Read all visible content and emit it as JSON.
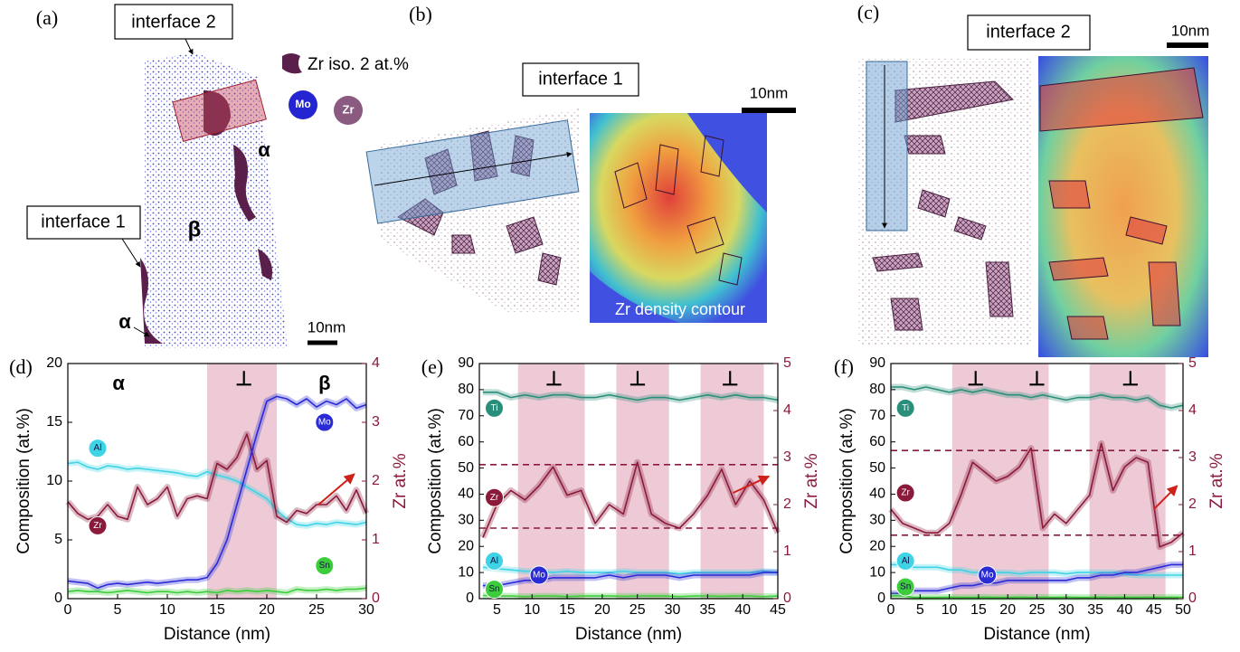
{
  "panels": {
    "a": {
      "label": "(a)",
      "callout_top": "interface 2",
      "legend_iso": "Zr iso. 2 at.%",
      "atom_mo": "Mo",
      "atom_zr": "Zr",
      "phase_alpha_upper": "α",
      "phase_beta": "β",
      "callout_left": "interface 1",
      "phase_alpha_lower": "α",
      "scale": "10nm"
    },
    "b": {
      "label": "(b)",
      "title": "interface 1",
      "scale": "10nm",
      "caption": "Zr density contour"
    },
    "c": {
      "label": "(c)",
      "title": "interface 2",
      "scale": "10nm"
    }
  },
  "chart_data": [
    {
      "type": "line",
      "panel_label": "(d)",
      "xlabel": "Distance (nm)",
      "ylabel": "Composition (at.%)",
      "y2label": "Zr at.%",
      "xlim": [
        0,
        30
      ],
      "xticks": [
        0,
        5,
        10,
        15,
        20,
        25,
        30
      ],
      "ylim": [
        0,
        20
      ],
      "yticks": [
        0,
        5,
        10,
        15,
        20
      ],
      "y2lim": [
        0,
        4
      ],
      "y2ticks": [
        0,
        1,
        2,
        3,
        4
      ],
      "bands": [
        [
          14,
          21
        ]
      ],
      "y2_reference_lines": [],
      "annotations": [
        "α",
        "⊥",
        "β"
      ],
      "x": [
        0,
        1,
        2,
        3,
        4,
        5,
        6,
        7,
        8,
        9,
        10,
        11,
        12,
        13,
        14,
        15,
        16,
        17,
        18,
        19,
        20,
        21,
        22,
        23,
        24,
        25,
        26,
        27,
        28,
        29,
        30
      ],
      "series": [
        {
          "name": "Al",
          "color": "#3fd3e6",
          "values": [
            11.5,
            11.6,
            11.2,
            11.0,
            11.3,
            11.2,
            11.0,
            11.1,
            11.0,
            10.9,
            10.8,
            10.7,
            10.5,
            10.4,
            10.8,
            10.5,
            10.3,
            10.0,
            9.5,
            9.0,
            8.5,
            7.5,
            6.8,
            6.3,
            6.2,
            6.4,
            6.3,
            6.5,
            6.4,
            6.3,
            6.5
          ]
        },
        {
          "name": "Zr",
          "color": "#8b1a3a",
          "axis": "y2",
          "values": [
            1.65,
            1.45,
            1.35,
            1.4,
            1.6,
            1.4,
            1.35,
            1.9,
            1.6,
            1.7,
            1.9,
            1.4,
            1.7,
            1.75,
            1.7,
            2.3,
            2.2,
            2.4,
            2.8,
            2.2,
            2.35,
            1.4,
            1.3,
            1.5,
            1.45,
            1.6,
            1.6,
            1.75,
            1.5,
            1.85,
            1.45
          ]
        },
        {
          "name": "Mo",
          "color": "#2b2bd6",
          "values": [
            1.5,
            1.4,
            1.3,
            0.9,
            1.2,
            1.3,
            1.2,
            1.3,
            1.4,
            1.3,
            1.4,
            1.5,
            1.6,
            1.6,
            1.8,
            3.0,
            5,
            8,
            11,
            14,
            16.8,
            17.2,
            17.0,
            16.5,
            17.0,
            16.3,
            16.8,
            16.5,
            17.0,
            16.2,
            16.5
          ]
        },
        {
          "name": "Sn",
          "color": "#3ccc3c",
          "values": [
            0.6,
            0.7,
            0.6,
            0.6,
            0.5,
            0.6,
            0.7,
            0.6,
            0.5,
            0.6,
            0.6,
            0.5,
            0.6,
            0.5,
            0.6,
            0.5,
            0.7,
            0.6,
            0.7,
            0.6,
            0.7,
            0.6,
            0.5,
            0.8,
            0.7,
            0.7,
            0.8,
            0.7,
            0.8,
            0.8,
            0.9
          ]
        }
      ]
    },
    {
      "type": "line",
      "panel_label": "(e)",
      "xlabel": "Distance (nm)",
      "ylabel": "Composition (at.%)",
      "y2label": "Zr at.%",
      "xlim": [
        2.5,
        45
      ],
      "xticks": [
        5,
        10,
        15,
        20,
        25,
        30,
        35,
        40,
        45
      ],
      "ylim": [
        0,
        90
      ],
      "yticks": [
        0,
        10,
        20,
        30,
        40,
        50,
        60,
        70,
        80,
        90
      ],
      "y2lim": [
        0,
        5
      ],
      "y2ticks": [
        0,
        1,
        2,
        3,
        4,
        5
      ],
      "bands": [
        [
          8,
          17.5
        ],
        [
          22,
          29.5
        ],
        [
          34,
          43
        ]
      ],
      "y2_reference_lines": [
        2.85,
        1.5
      ],
      "annotations": [
        "⊥",
        "⊥",
        "⊥"
      ],
      "x": [
        3,
        5,
        7,
        9,
        11,
        13,
        15,
        17,
        19,
        21,
        23,
        25,
        27,
        29,
        31,
        33,
        35,
        37,
        39,
        41,
        43,
        45
      ],
      "series": [
        {
          "name": "Ti",
          "color": "#2a8f7a",
          "values": [
            79,
            79,
            77,
            78,
            77,
            78,
            78,
            77,
            77,
            78,
            77,
            76,
            77,
            77,
            76,
            77,
            78,
            77,
            78,
            77,
            77,
            76
          ]
        },
        {
          "name": "Zr",
          "color": "#8b1a3a",
          "axis": "y2",
          "values": [
            1.3,
            2.0,
            2.3,
            2.1,
            2.4,
            2.8,
            2.2,
            2.3,
            1.6,
            2.0,
            1.8,
            2.9,
            1.8,
            1.6,
            1.5,
            1.8,
            2.2,
            2.75,
            2.0,
            2.5,
            2.1,
            1.4
          ]
        },
        {
          "name": "Al",
          "color": "#3fd3e6",
          "values": [
            12,
            11.5,
            11,
            10.5,
            10.5,
            10,
            10.5,
            10,
            10,
            10,
            10.5,
            10,
            10,
            10,
            9.5,
            10,
            10,
            10,
            10,
            10,
            10.5,
            10
          ]
        },
        {
          "name": "Mo",
          "color": "#2b2bd6",
          "values": [
            5,
            5,
            6,
            7,
            7,
            8,
            8,
            8,
            8,
            9,
            8,
            9,
            9,
            9,
            8,
            9,
            9,
            9,
            9,
            9,
            10,
            10
          ]
        },
        {
          "name": "Sn",
          "color": "#3ccc3c",
          "values": [
            1.2,
            1,
            1,
            0.8,
            1,
            1,
            0.8,
            1,
            1,
            1,
            0.9,
            1,
            1,
            1,
            0.8,
            1,
            1,
            0.9,
            1,
            1,
            0.8,
            1
          ]
        }
      ]
    },
    {
      "type": "line",
      "panel_label": "(f)",
      "xlabel": "Distance (nm)",
      "ylabel": "Composition (at.%)",
      "y2label": "Zr at.%",
      "xlim": [
        0,
        50
      ],
      "xticks": [
        0,
        5,
        10,
        15,
        20,
        25,
        30,
        35,
        40,
        45,
        50
      ],
      "ylim": [
        0,
        90
      ],
      "yticks": [
        0,
        10,
        20,
        30,
        40,
        50,
        60,
        70,
        80,
        90
      ],
      "y2lim": [
        0,
        5
      ],
      "y2ticks": [
        0,
        1,
        2,
        3,
        4,
        5
      ],
      "bands": [
        [
          10.5,
          27
        ],
        [
          34,
          47
        ]
      ],
      "y2_reference_lines": [
        3.15,
        1.35
      ],
      "annotations": [
        "⊥",
        "⊥",
        "⊥"
      ],
      "x": [
        0,
        2,
        4,
        6,
        8,
        10,
        12,
        14,
        16,
        18,
        20,
        22,
        24,
        26,
        28,
        30,
        32,
        34,
        36,
        38,
        40,
        42,
        44,
        46,
        48,
        50
      ],
      "series": [
        {
          "name": "Ti",
          "color": "#2a8f7a",
          "values": [
            81,
            81,
            80,
            81,
            80,
            79,
            80,
            79,
            80,
            79,
            78,
            78,
            77,
            78,
            77,
            76,
            77,
            77,
            78,
            77,
            77,
            76,
            77,
            74,
            73,
            74
          ]
        },
        {
          "name": "Zr",
          "color": "#8b1a3a",
          "axis": "y2",
          "values": [
            1.9,
            1.6,
            1.5,
            1.4,
            1.4,
            1.6,
            2.2,
            2.9,
            2.7,
            2.5,
            2.6,
            2.8,
            3.2,
            1.5,
            1.8,
            1.6,
            1.9,
            2.2,
            3.3,
            2.3,
            2.8,
            3.0,
            2.9,
            1.1,
            1.2,
            1.4
          ]
        },
        {
          "name": "Al",
          "color": "#3fd3e6",
          "values": [
            13,
            13,
            12,
            12,
            12,
            11,
            11,
            10,
            10,
            10,
            10,
            9.5,
            10,
            10,
            10,
            9.5,
            10,
            10,
            10,
            10,
            9.5,
            9,
            9,
            9,
            9,
            9
          ]
        },
        {
          "name": "Mo",
          "color": "#2b2bd6",
          "values": [
            2,
            2,
            3,
            3,
            3,
            4,
            5,
            5,
            6,
            6,
            7,
            7,
            7,
            7,
            7,
            7,
            8,
            8,
            9,
            9,
            10,
            10,
            11,
            12,
            13,
            13
          ]
        },
        {
          "name": "Sn",
          "color": "#3ccc3c",
          "values": [
            1,
            1,
            0.5,
            0.5,
            0.5,
            0.6,
            0.5,
            0.5,
            0.6,
            0.5,
            0.5,
            0.6,
            0.5,
            0.6,
            0.5,
            0.6,
            0.5,
            0.5,
            0.6,
            0.5,
            0.6,
            0.5,
            0.6,
            0.5,
            0.6,
            0.5
          ]
        }
      ]
    }
  ]
}
